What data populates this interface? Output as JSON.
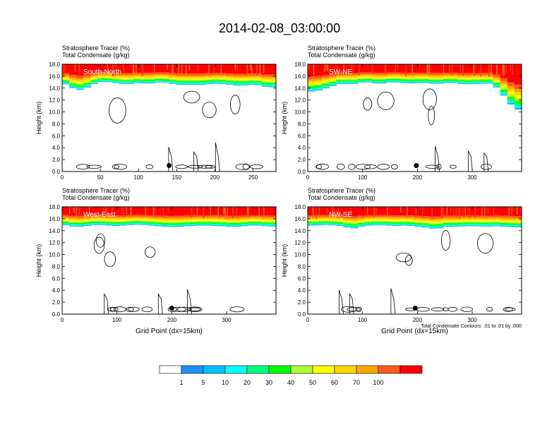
{
  "title": "2014-02-08_03:00:00",
  "colorbar": {
    "labels": [
      "1",
      "5",
      "10",
      "20",
      "30",
      "40",
      "50",
      "60",
      "70",
      "100"
    ],
    "colors": [
      "#ffffff",
      "#1e90ff",
      "#00bfff",
      "#00ffff",
      "#00ff7f",
      "#00ff00",
      "#adff2f",
      "#ffff00",
      "#ffd700",
      "#ffa500",
      "#ff5a1f",
      "#ff0000"
    ]
  },
  "footnote": "Total Condensate Contours: .01 to .01 by .000",
  "chart_data": [
    {
      "type": "heatmap",
      "panel": "top-left",
      "subtitle_line1": "Stratosphere Tracer   (%)",
      "subtitle_line2": "Total Condensate   (g/kg)",
      "region_label": "South-North",
      "ylabel": "Height (km)",
      "xlabel": "",
      "xlim": [
        0,
        280
      ],
      "xticks": [
        "0",
        "50",
        "100",
        "150",
        "200",
        "250"
      ],
      "xtick_values": [
        0,
        50,
        100,
        150,
        200,
        250
      ],
      "ylim": [
        0,
        18
      ],
      "yticks": [
        "0.0",
        "2.0",
        "4.0",
        "6.0",
        "8.0",
        "10.0",
        "12.0",
        "14.0",
        "16.0",
        "18.0"
      ],
      "marker_x": 140,
      "marker_y": 1.0,
      "tracer_base_km": [
        14.9,
        14.4,
        13.6,
        13.8,
        14.4,
        15.0,
        15.1,
        14.9,
        14.8,
        14.6,
        14.8,
        14.9,
        14.7,
        14.9,
        15.0,
        14.8,
        14.6,
        14.5,
        14.6,
        14.5,
        14.6,
        14.7,
        14.8,
        14.6,
        14.5,
        14.4,
        14.5,
        14.6,
        14.4,
        14.0,
        14.3
      ]
    },
    {
      "type": "heatmap",
      "panel": "top-right",
      "subtitle_line1": "Stratosphere Tracer   (%)",
      "subtitle_line2": "Total Condensate   (g/kg)",
      "region_label": "SW-NE",
      "ylabel": "Height (km)",
      "xlabel": "",
      "xlim": [
        0,
        390
      ],
      "xticks": [
        "0",
        "100",
        "200",
        "300"
      ],
      "xtick_values": [
        0,
        100,
        200,
        300
      ],
      "ylim": [
        0,
        18
      ],
      "yticks": [
        "0.0",
        "2.0",
        "4.0",
        "6.0",
        "8.0",
        "10.0",
        "12.0",
        "14.0",
        "16.0",
        "18.0"
      ],
      "marker_x": 198,
      "marker_y": 1.0,
      "tracer_base_km": [
        13.5,
        13.4,
        13.8,
        14.1,
        14.6,
        14.8,
        14.6,
        14.8,
        15.0,
        14.9,
        14.7,
        14.9,
        15.0,
        14.9,
        14.8,
        14.8,
        14.9,
        14.8,
        14.7,
        14.8,
        14.9,
        14.8,
        14.6,
        14.7,
        14.7,
        14.8,
        14.7,
        13.5,
        12.0,
        10.5,
        10.3
      ]
    },
    {
      "type": "heatmap",
      "panel": "bottom-left",
      "subtitle_line1": "Stratosphere Tracer   (%)",
      "subtitle_line2": "Total Condensate   (g/kg)",
      "region_label": "West-East",
      "ylabel": "Height (km)",
      "xlabel": "Grid Point (dx=15km)",
      "xlim": [
        0,
        390
      ],
      "xticks": [
        "0",
        "100",
        "200",
        "300"
      ],
      "xtick_values": [
        0,
        100,
        200,
        300
      ],
      "ylim": [
        0,
        18
      ],
      "yticks": [
        "0.0",
        "2.0",
        "4.0",
        "6.0",
        "8.0",
        "10.0",
        "12.0",
        "14.0",
        "16.0",
        "18.0"
      ],
      "marker_x": 200,
      "marker_y": 1.0,
      "tracer_base_km": [
        15.0,
        14.8,
        14.6,
        14.7,
        14.9,
        15.0,
        14.9,
        14.8,
        14.8,
        14.9,
        15.0,
        15.0,
        14.9,
        14.8,
        14.7,
        14.6,
        14.6,
        14.7,
        14.8,
        14.8,
        14.9,
        14.8,
        14.8,
        14.7,
        14.6,
        14.7,
        14.8,
        14.9,
        14.8,
        14.7,
        14.7
      ]
    },
    {
      "type": "heatmap",
      "panel": "bottom-right",
      "subtitle_line1": "Stratosphere Tracer   (%)",
      "subtitle_line2": "Total Condensate   (g/kg)",
      "region_label": "NW-SE",
      "ylabel": "Height (km)",
      "xlabel": "Grid Point (dx=15km)",
      "xlim": [
        0,
        390
      ],
      "xticks": [
        "0",
        "100",
        "200",
        "300"
      ],
      "xtick_values": [
        0,
        100,
        200,
        300
      ],
      "ylim": [
        0,
        18
      ],
      "yticks": [
        "0.0",
        "2.0",
        "4.0",
        "6.0",
        "8.0",
        "10.0",
        "12.0",
        "14.0",
        "16.0",
        "18.0"
      ],
      "marker_x": 196,
      "marker_y": 1.0,
      "tracer_base_km": [
        14.8,
        14.9,
        14.9,
        15.0,
        14.8,
        14.8,
        14.3,
        14.5,
        14.8,
        14.9,
        14.9,
        14.9,
        14.8,
        14.8,
        14.9,
        14.7,
        14.6,
        14.5,
        14.2,
        14.6,
        14.7,
        14.6,
        14.8,
        14.7,
        14.8,
        14.6,
        14.8,
        14.7,
        14.6,
        14.6,
        14.5
      ]
    }
  ]
}
